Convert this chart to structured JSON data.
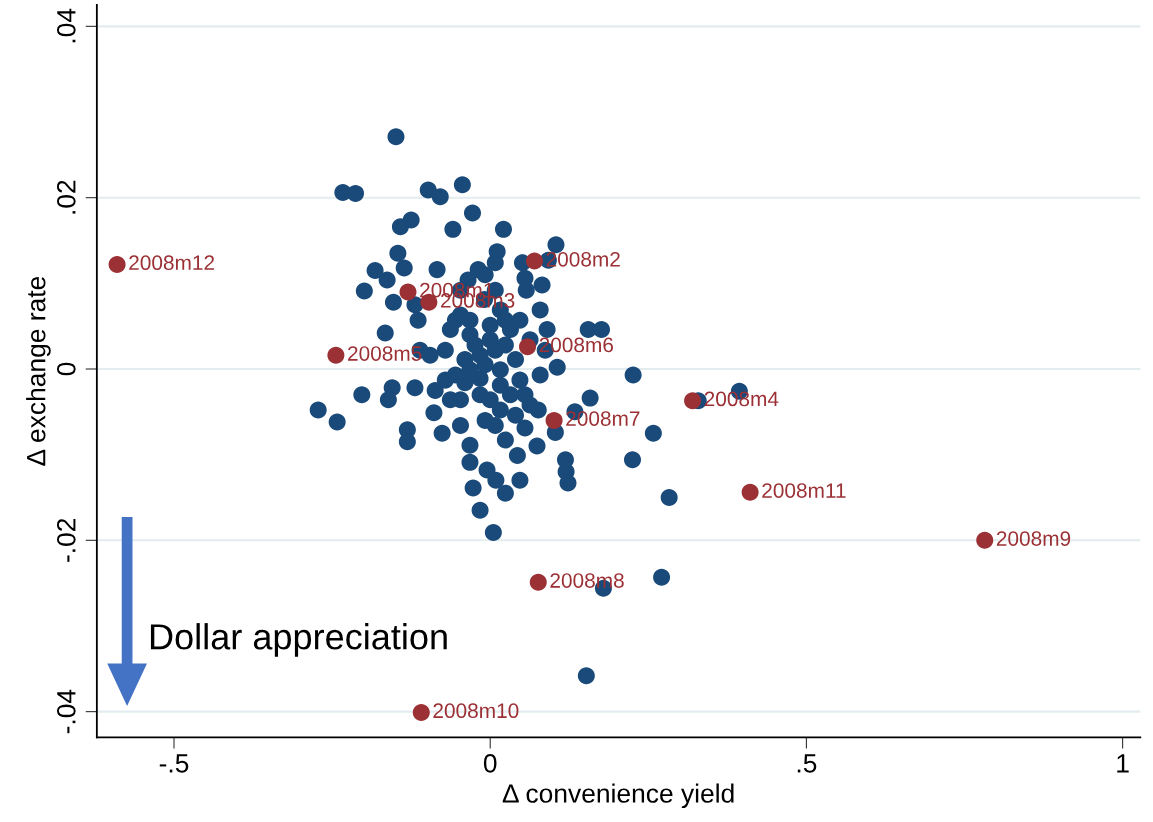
{
  "chart_data": {
    "type": "scatter",
    "xlabel": "Δ convenience yield",
    "ylabel": "Δ exchange rate",
    "xlim": [
      -0.622,
      1.028
    ],
    "ylim": [
      -0.043,
      0.0425
    ],
    "xticks": [
      {
        "value": -0.5,
        "label": "-.5"
      },
      0,
      {
        "value": 0.5,
        "label": ".5"
      },
      1
    ],
    "yticks": [
      {
        "value": -0.04,
        "label": "-.04"
      },
      {
        "value": -0.02,
        "label": "-.02"
      },
      0,
      {
        "value": 0.02,
        "label": ".02"
      },
      {
        "value": 0.04,
        "label": ".04"
      }
    ],
    "grid": "y",
    "marker": "circle",
    "series": [
      {
        "color": "#1a4a7a",
        "x": [
          -0.149,
          -0.233,
          -0.213,
          -0.098,
          -0.079,
          -0.044,
          -0.028,
          -0.125,
          -0.142,
          -0.059,
          0.021,
          0.104,
          0.092,
          -0.146,
          -0.136,
          -0.182,
          -0.163,
          -0.199,
          -0.084,
          0.011,
          0.008,
          0.051,
          0.055,
          0.082,
          0.057,
          -0.119,
          -0.153,
          -0.166,
          -0.114,
          0.155,
          0.176,
          0.079,
          0.09,
          -0.035,
          -0.019,
          -0.009,
          -0.055,
          -0.032,
          0.016,
          0.032,
          -0.071,
          -0.095,
          -0.111,
          -0.04,
          -0.016,
          0.008,
          0.04,
          0.063,
          0.087,
          0.106,
          0.226,
          0.079,
          0.047,
          0.016,
          -0.016,
          -0.04,
          -0.087,
          -0.119,
          -0.155,
          -0.161,
          -0.203,
          -0.272,
          -0.242,
          -0.089,
          -0.131,
          -0.131,
          -0.076,
          -0.047,
          -0.047,
          -0.032,
          -0.032,
          -0.008,
          0.016,
          0.024,
          0.04,
          0.055,
          0.076,
          0.103,
          0.134,
          0.158,
          0.074,
          0.043,
          0.047,
          0.024,
          -0.005,
          0.009,
          -0.027,
          -0.016,
          0.005,
          0.119,
          0.12,
          0.123,
          0.225,
          0.258,
          0.283,
          0.329,
          0.394,
          0.271,
          0.179,
          0.152,
          -0.063,
          -0.047,
          -0.032,
          0.0,
          -0.024,
          0.0,
          0.024,
          -0.008,
          0.016,
          -0.032,
          -0.055,
          0.032,
          0.0,
          -0.016,
          0.055,
          0.008,
          0.063,
          -0.063,
          -0.071,
          0.024,
          0.047,
          -0.047,
          0.008,
          -0.008
        ],
        "values": [
          0.0271,
          0.0206,
          0.0205,
          0.0209,
          0.0201,
          0.0215,
          0.0182,
          0.0174,
          0.0166,
          0.0163,
          0.0163,
          0.0145,
          0.0127,
          0.0135,
          0.0118,
          0.0115,
          0.0104,
          0.0091,
          0.0116,
          0.0137,
          0.0124,
          0.0124,
          0.0106,
          0.0098,
          0.0092,
          0.0075,
          0.0078,
          0.0042,
          0.0057,
          0.0046,
          0.0046,
          0.0069,
          0.0046,
          0.0104,
          0.0116,
          0.0081,
          0.0057,
          0.004,
          0.0069,
          0.0046,
          0.0022,
          0.0016,
          0.0022,
          0.0011,
          0.0016,
          0.0022,
          0.0011,
          0.0034,
          0.0022,
          0.0002,
          -0.0007,
          -0.0007,
          -0.0013,
          -0.0019,
          -0.0011,
          -0.0016,
          -0.0025,
          -0.0022,
          -0.0022,
          -0.0036,
          -0.003,
          -0.0048,
          -0.0062,
          -0.0051,
          -0.0071,
          -0.0085,
          -0.0075,
          -0.0036,
          -0.0066,
          -0.0089,
          -0.0109,
          -0.006,
          -0.0048,
          -0.0083,
          -0.0054,
          -0.0069,
          -0.0048,
          -0.0074,
          -0.005,
          -0.0034,
          -0.009,
          -0.0101,
          -0.013,
          -0.0145,
          -0.0118,
          -0.013,
          -0.0139,
          -0.0165,
          -0.0191,
          -0.0106,
          -0.012,
          -0.0133,
          -0.0106,
          -0.0075,
          -0.015,
          -0.0037,
          -0.0026,
          -0.0243,
          -0.0256,
          -0.0358,
          0.0046,
          0.0063,
          0.0057,
          0.0051,
          0.0028,
          0.0034,
          0.0028,
          0.0005,
          -0.0001,
          -0.0001,
          -0.0007,
          -0.003,
          -0.0036,
          -0.003,
          -0.003,
          -0.0066,
          -0.0042,
          -0.0036,
          -0.0013,
          0.0057,
          0.0057,
          0.0092,
          0.0092,
          0.011
        ]
      },
      {
        "color": "#9b3035",
        "x": [
          -0.59,
          -0.13,
          -0.097,
          0.07,
          -0.244,
          0.059,
          0.101,
          0.32,
          0.411,
          0.782,
          0.076,
          -0.109
        ],
        "values": [
          0.0122,
          0.009,
          0.0078,
          0.0126,
          0.0016,
          0.0026,
          -0.006,
          -0.0037,
          -0.0144,
          -0.02,
          -0.0249,
          -0.0401
        ]
      }
    ],
    "annotations": [
      {
        "text": "2008m12",
        "x": -0.59,
        "y": 0.0122
      },
      {
        "text": "2008m1",
        "x": -0.13,
        "y": 0.009
      },
      {
        "text": "2008m3",
        "x": -0.097,
        "y": 0.0078
      },
      {
        "text": "2008m2",
        "x": 0.07,
        "y": 0.0126
      },
      {
        "text": "2008m5",
        "x": -0.244,
        "y": 0.0016
      },
      {
        "text": "2008m6",
        "x": 0.059,
        "y": 0.0026
      },
      {
        "text": "2008m7",
        "x": 0.101,
        "y": -0.006
      },
      {
        "text": "2008m4",
        "x": 0.32,
        "y": -0.0037
      },
      {
        "text": "2008m11",
        "x": 0.411,
        "y": -0.0144
      },
      {
        "text": "2008m9",
        "x": 0.782,
        "y": -0.02
      },
      {
        "text": "2008m8",
        "x": 0.076,
        "y": -0.0249
      },
      {
        "text": "2008m10",
        "x": -0.109,
        "y": -0.0401
      },
      "Dollar appreciation"
    ]
  }
}
